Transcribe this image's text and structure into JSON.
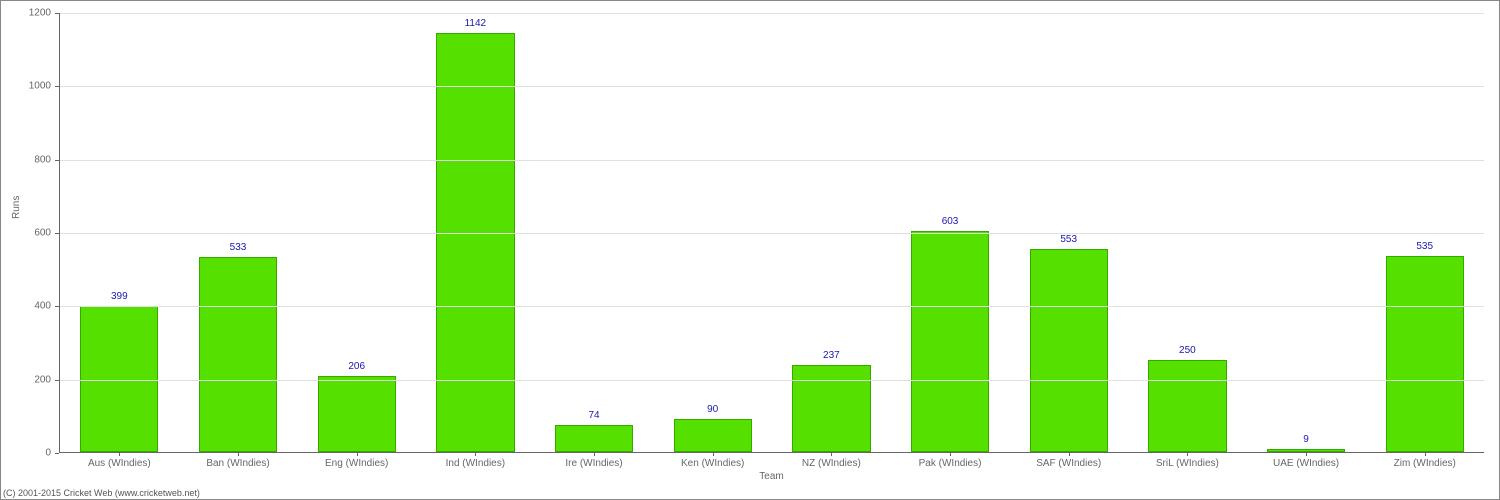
{
  "chart": {
    "type": "bar",
    "xlabel": "Team",
    "ylabel": "Runs",
    "categories": [
      "Aus (WIndies)",
      "Ban (WIndies)",
      "Eng (WIndies)",
      "Ind (WIndies)",
      "Ire (WIndies)",
      "Ken (WIndies)",
      "NZ (WIndies)",
      "Pak (WIndies)",
      "SAF (WIndies)",
      "SriL (WIndies)",
      "UAE (WIndies)",
      "Zim (WIndies)"
    ],
    "values": [
      399,
      533,
      206,
      1142,
      74,
      90,
      237,
      603,
      553,
      250,
      9,
      535
    ],
    "bar_color": "#55e000",
    "bar_border_color": "#33aa00",
    "value_label_color": "#1818b0",
    "background_color": "#ffffff",
    "grid_color": "#e0e0e0",
    "axis_color": "#666666",
    "tick_label_color": "#666666",
    "ylim": [
      0,
      1200
    ],
    "ytick_step": 200,
    "bar_width": 0.66,
    "label_fontsize": 10,
    "value_fontsize": 10
  },
  "footer": {
    "credit": "(C) 2001-2015 Cricket Web (www.cricketweb.net)"
  }
}
